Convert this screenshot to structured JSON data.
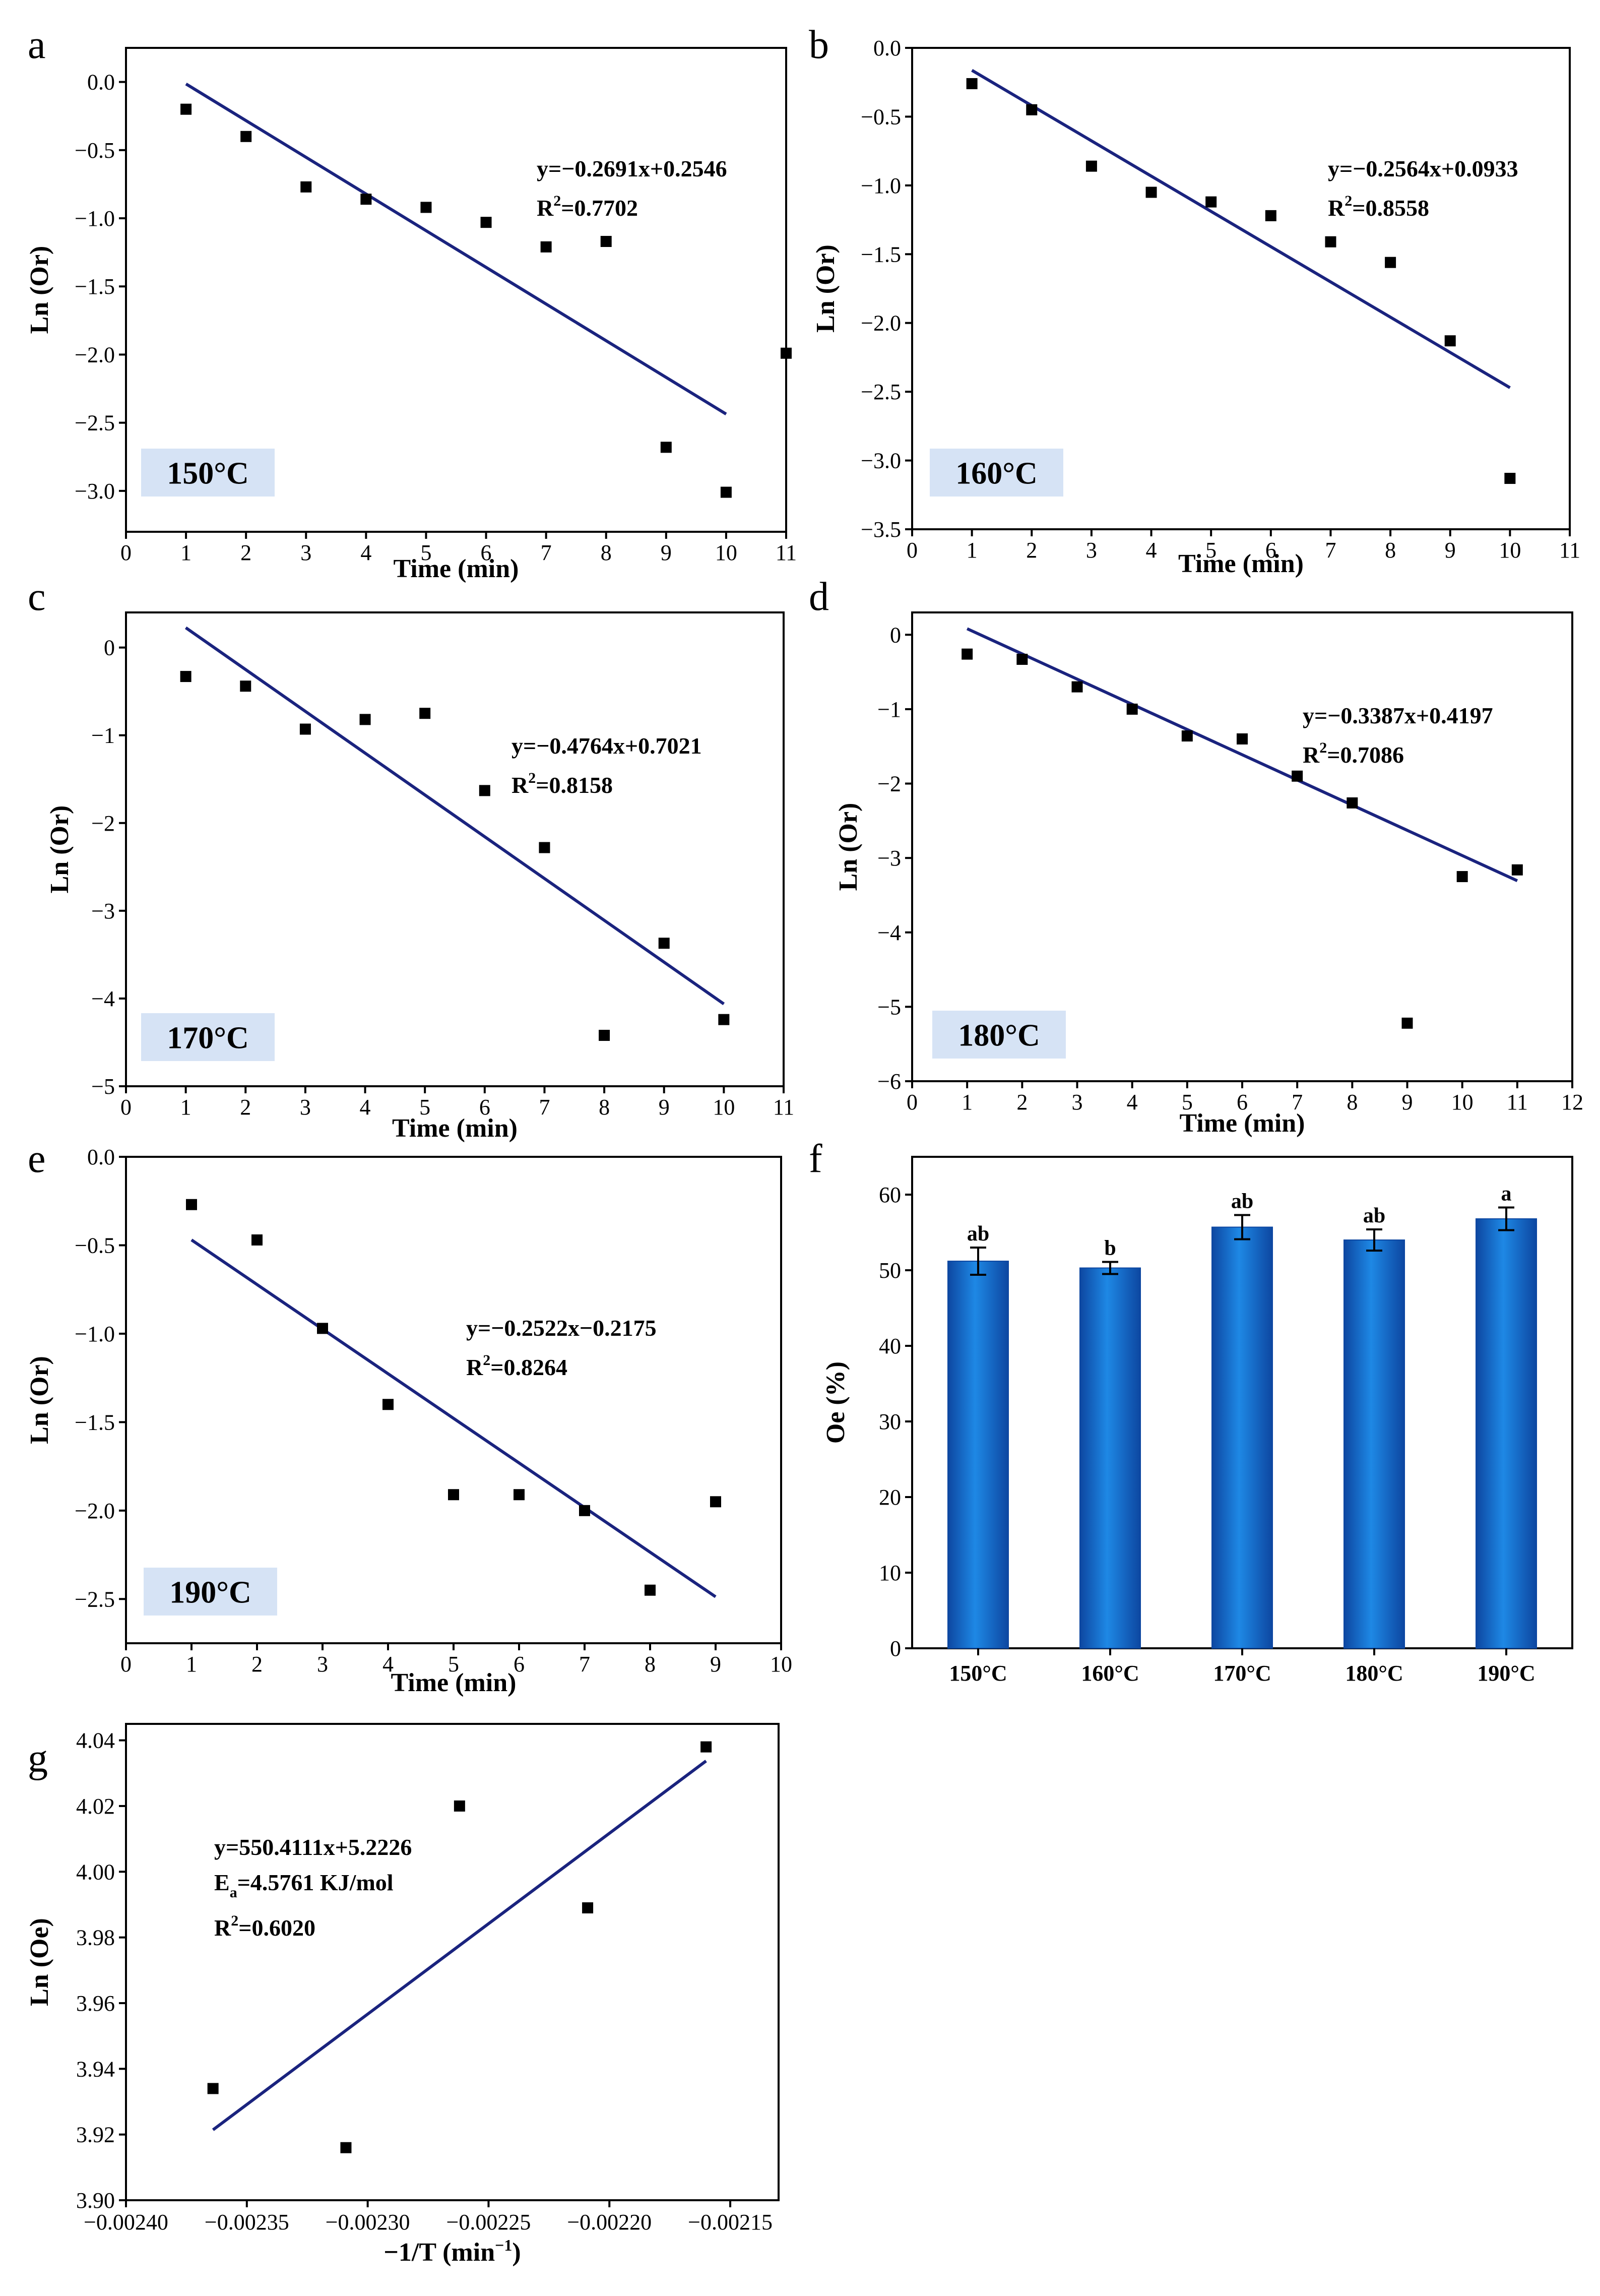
{
  "figure": {
    "fit_color": "#1a237e",
    "point_color": "#000000",
    "badge_color": "#d6e3f5",
    "bar_color": "#1e88e5"
  },
  "chart_data": [
    {
      "panel": "a",
      "type": "scatter",
      "badge": "150°C",
      "xlabel": "Time (min)",
      "ylabel": "Ln (Or)",
      "xlim": [
        0,
        11
      ],
      "ylim": [
        -3.3,
        0.25
      ],
      "xticks": [
        0,
        1,
        2,
        3,
        4,
        5,
        6,
        7,
        8,
        9,
        10,
        11
      ],
      "yticks": [
        0.0,
        -0.5,
        -1.0,
        -1.5,
        -2.0,
        -2.5,
        -3.0
      ],
      "x": [
        1,
        2,
        3,
        4,
        5,
        6,
        7,
        8,
        9,
        10,
        11
      ],
      "y": [
        -0.2,
        -0.4,
        -0.77,
        -0.86,
        -0.92,
        -1.03,
        -1.21,
        -1.17,
        -2.68,
        -3.01,
        -1.99
      ],
      "fit": {
        "slope": -0.2691,
        "intercept": 0.2546,
        "x": [
          1,
          10
        ]
      },
      "equation": "y=−0.2691x+0.2546",
      "r2": "=0.7702"
    },
    {
      "panel": "b",
      "type": "scatter",
      "badge": "160°C",
      "xlabel": "Time (min)",
      "ylabel": "Ln (Or)",
      "xlim": [
        0,
        11
      ],
      "ylim": [
        -3.5,
        0.0
      ],
      "xticks": [
        0,
        1,
        2,
        3,
        4,
        5,
        6,
        7,
        8,
        9,
        10,
        11
      ],
      "yticks": [
        0.0,
        -0.5,
        -1.0,
        -1.5,
        -2.0,
        -2.5,
        -3.0,
        -3.5
      ],
      "x": [
        1,
        2,
        3,
        4,
        5,
        6,
        7,
        8,
        9,
        10
      ],
      "y": [
        -0.26,
        -0.45,
        -0.86,
        -1.05,
        -1.12,
        -1.22,
        -1.41,
        -1.56,
        -2.13,
        -3.13
      ],
      "fit": {
        "slope": -0.2564,
        "intercept": 0.0933,
        "x": [
          1,
          10
        ]
      },
      "equation": "y=−0.2564x+0.0933",
      "r2": "=0.8558"
    },
    {
      "panel": "c",
      "type": "scatter",
      "badge": "170°C",
      "xlabel": "Time (min)",
      "ylabel": "Ln (Or)",
      "xlim": [
        0,
        11
      ],
      "ylim": [
        -5,
        0.4
      ],
      "xticks": [
        0,
        1,
        2,
        3,
        4,
        5,
        6,
        7,
        8,
        9,
        10,
        11
      ],
      "yticks": [
        0,
        -1,
        -2,
        -3,
        -4,
        -5
      ],
      "x": [
        1,
        2,
        3,
        4,
        5,
        6,
        7,
        8,
        9,
        10
      ],
      "y": [
        -0.33,
        -0.44,
        -0.93,
        -0.82,
        -0.75,
        -1.63,
        -2.28,
        -4.42,
        -3.37,
        -4.24
      ],
      "fit": {
        "slope": -0.4764,
        "intercept": 0.7021,
        "x": [
          1,
          10
        ]
      },
      "equation": "y=−0.4764x+0.7021",
      "r2": "=0.8158"
    },
    {
      "panel": "d",
      "type": "scatter",
      "badge": "180°C",
      "xlabel": "Time (min)",
      "ylabel": "Ln (Or)",
      "xlim": [
        0,
        12
      ],
      "ylim": [
        -6,
        0.3
      ],
      "xticks": [
        0,
        1,
        2,
        3,
        4,
        5,
        6,
        7,
        8,
        9,
        10,
        11,
        12
      ],
      "yticks": [
        0,
        -1,
        -2,
        -3,
        -4,
        -5,
        -6
      ],
      "x": [
        1,
        2,
        3,
        4,
        5,
        6,
        7,
        8,
        9,
        10,
        11
      ],
      "y": [
        -0.26,
        -0.33,
        -0.7,
        -1.0,
        -1.36,
        -1.4,
        -1.9,
        -2.26,
        -5.22,
        -3.25,
        -3.16
      ],
      "fit": {
        "slope": -0.3387,
        "intercept": 0.4197,
        "x": [
          1,
          11
        ]
      },
      "equation": "y=−0.3387x+0.4197",
      "r2": "=0.7086"
    },
    {
      "panel": "e",
      "type": "scatter",
      "badge": "190°C",
      "xlabel": "Time (min)",
      "ylabel": "Ln (Or)",
      "xlim": [
        0,
        10
      ],
      "ylim": [
        -2.75,
        0.0
      ],
      "xticks": [
        0,
        1,
        2,
        3,
        4,
        5,
        6,
        7,
        8,
        9,
        10
      ],
      "yticks": [
        0.0,
        -0.5,
        -1.0,
        -1.5,
        -2.0,
        -2.5
      ],
      "x": [
        1,
        2,
        3,
        4,
        5,
        6,
        7,
        8,
        9
      ],
      "y": [
        -0.27,
        -0.47,
        -0.97,
        -1.4,
        -1.91,
        -1.91,
        -2.0,
        -2.45,
        -1.95
      ],
      "fit": {
        "slope": -0.2522,
        "intercept": -0.2175,
        "x": [
          1,
          9
        ]
      },
      "equation": "y=−0.2522x−0.2175",
      "r2": "=0.8264"
    },
    {
      "panel": "f",
      "type": "bar",
      "categories": [
        "150°C",
        "160°C",
        "170°C",
        "180°C",
        "190°C"
      ],
      "values": [
        51.2,
        50.3,
        55.7,
        54.0,
        56.8
      ],
      "errors": [
        1.8,
        0.8,
        1.6,
        1.4,
        1.5
      ],
      "labels": [
        "ab",
        "b",
        "ab",
        "ab",
        "a"
      ],
      "ylabel": "Oe (%)",
      "ylim": [
        0,
        65
      ],
      "yticks": [
        0,
        10,
        20,
        30,
        40,
        50,
        60
      ]
    },
    {
      "panel": "g",
      "type": "scatter",
      "xlabel_main": "−1/T (min",
      "xlabel_sup": "−1",
      "xlabel_end": ")",
      "ylabel": "Ln (Oe)",
      "xlim": [
        -0.0024,
        -0.00213
      ],
      "ylim": [
        3.9,
        4.045
      ],
      "xticks": [
        -0.0024,
        -0.00235,
        -0.0023,
        -0.00225,
        -0.0022,
        -0.00215
      ],
      "xtick_labels": [
        "−0.00240",
        "−0.00235",
        "−0.00230",
        "−0.00225",
        "−0.00220",
        "−0.00215"
      ],
      "yticks": [
        3.9,
        3.92,
        3.94,
        3.96,
        3.98,
        4.0,
        4.02,
        4.04
      ],
      "x": [
        -0.002364,
        -0.002309,
        -0.002262,
        -0.002209,
        -0.00216
      ],
      "y": [
        3.934,
        3.916,
        4.02,
        3.989,
        4.038
      ],
      "fit": {
        "slope": 550.4111,
        "intercept": 5.2226,
        "x": [
          -0.002364,
          -0.00216
        ]
      },
      "equation": "y=550.4111x+5.2226",
      "ea_prefix": "E",
      "ea_sub": "a",
      "ea_suffix": "=4.5761 KJ/mol",
      "r2": "=0.6020"
    }
  ]
}
